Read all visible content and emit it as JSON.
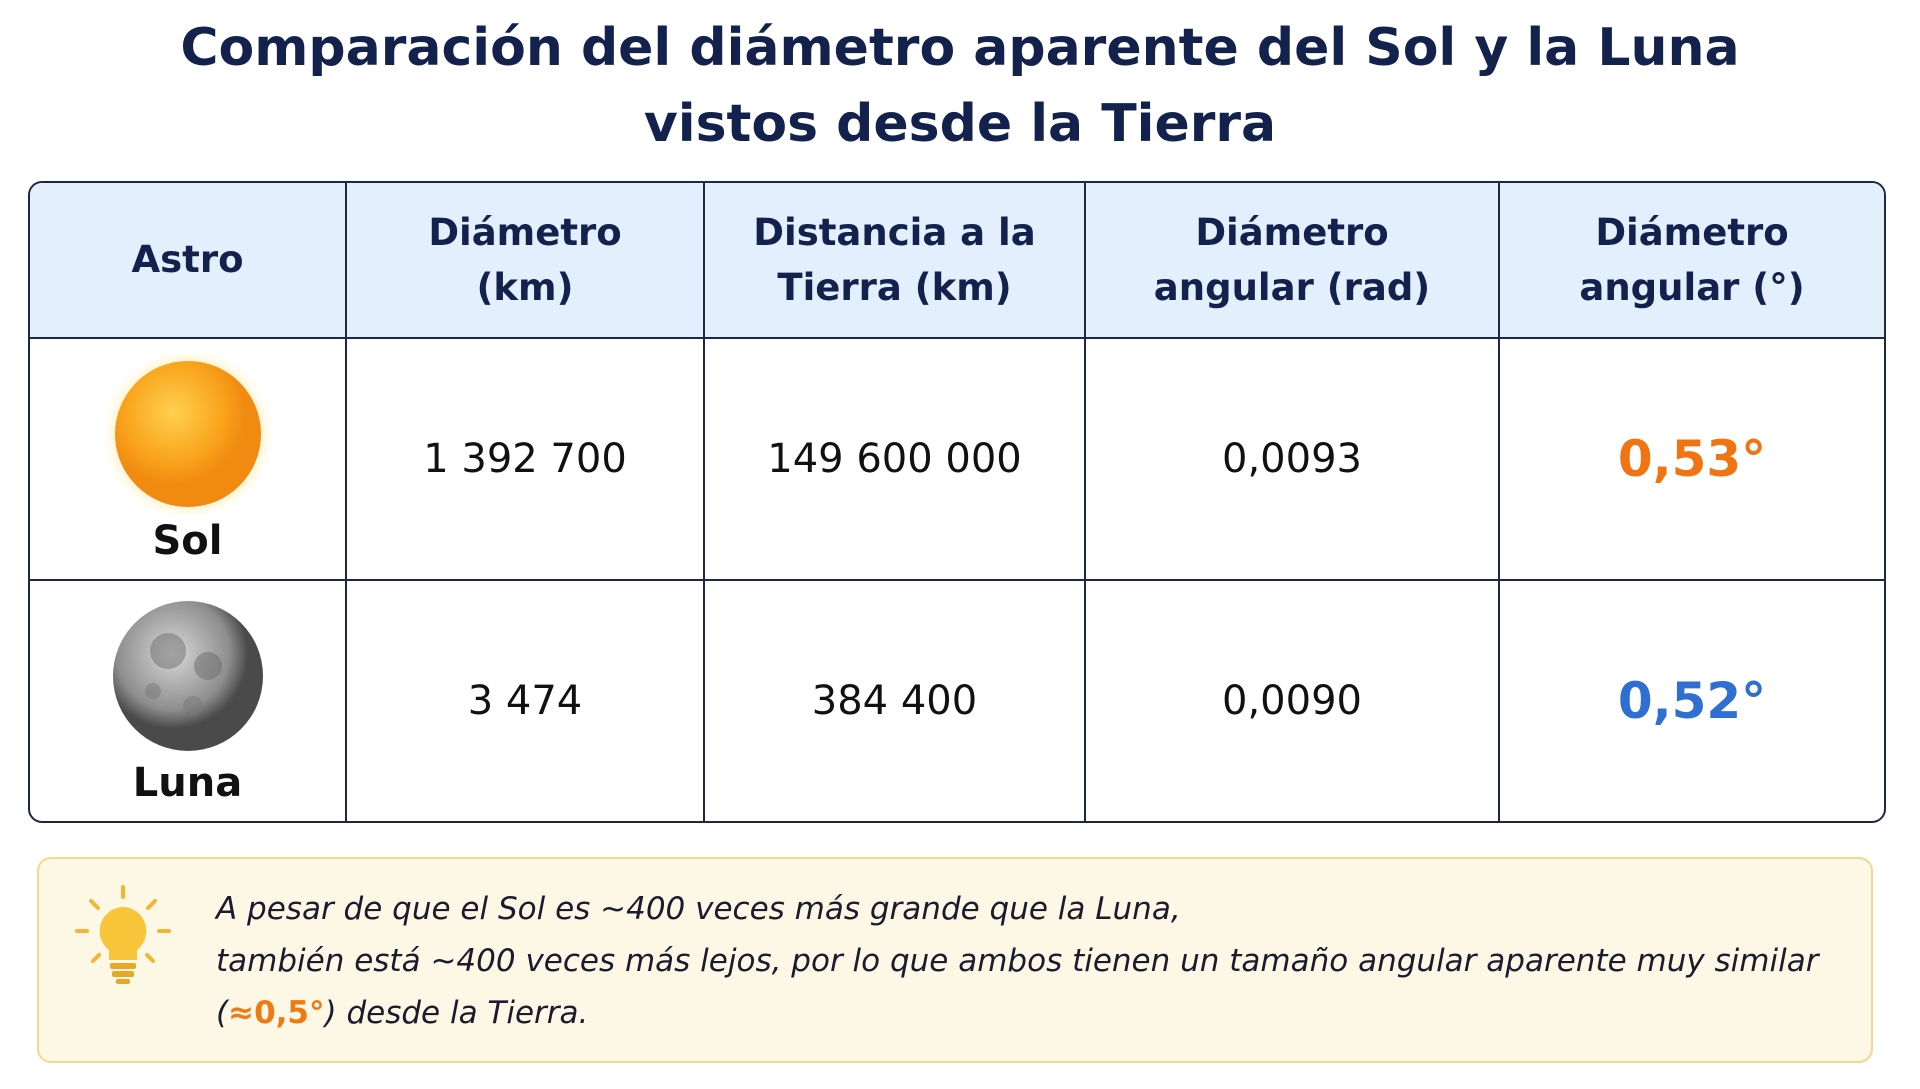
{
  "header": {
    "title": [
      "Comparación del diámetro aparente del Sol y la Luna",
      "vistos desde la Tierra"
    ]
  },
  "table": {
    "columns": [
      "Astro",
      "Diámetro (km)",
      "Distancia a la Tierra (km)",
      "Diámetro angular (rad)",
      "Diámetro angular (°)"
    ],
    "rows": [
      [
        "Sol",
        "1 392 700",
        "149 600 000",
        "0,0093",
        "0,53°"
      ],
      [
        "Luna",
        "3 474",
        "384 400",
        "0,0090",
        "0,52°"
      ]
    ]
  },
  "note": {
    "line1": "A pesar de que el Sol es ~400 veces más grande que la Luna,",
    "line2": "también está ~400 veces más lejos, por lo que ambos tienen un tamaño angular aparente muy similar",
    "line3": [
      "(",
      "≈0,5°",
      ") desde la Tierra."
    ]
  }
}
